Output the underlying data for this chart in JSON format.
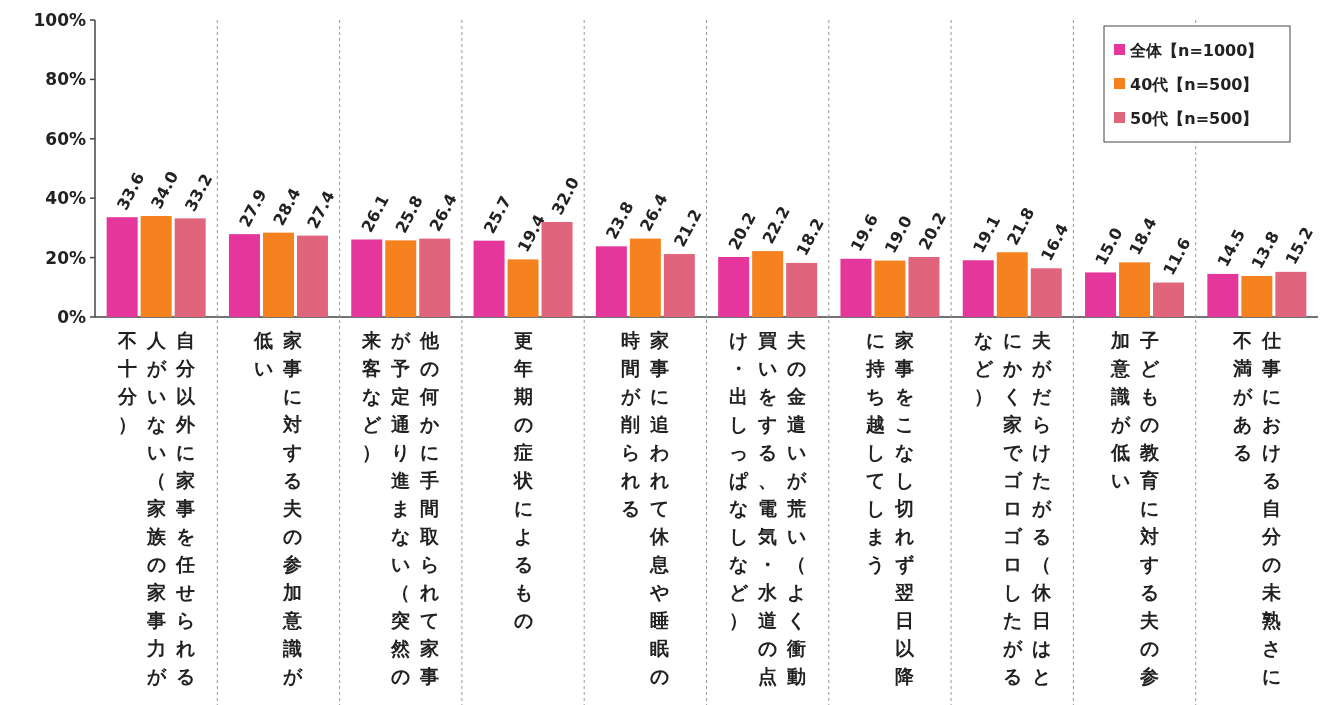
{
  "chart_data": {
    "type": "bar",
    "categories": [
      "自分以外に家事を任せられる人がいない（家族の家事力が不十分）",
      "家事に対する夫の参加意識が低い",
      "他の何かに手間取られて家事が予定通り進まない（突然の来客など）",
      "更年期の症状によるもの",
      "家事に追われて休息や睡眠の時間が削られる",
      "夫の金遣いが荒い（よく衝動買いをする、電気・水道の点け・出しっぱなしなど）",
      "家事をこなし切れず翌日以降に持ち越してしまう",
      "夫がだらけたがる（休日はとにかく家でゴロゴロしたがるなど）",
      "子どもの教育に対する夫の参加意識が低い",
      "仕事における自分の未熟さに不満がある"
    ],
    "series": [
      {
        "name": "全体【n=1000】",
        "color": "#e5379b",
        "values": [
          33.6,
          27.9,
          26.1,
          25.7,
          23.8,
          20.2,
          19.6,
          19.1,
          15.0,
          14.5
        ],
        "value_labels": [
          "33.6",
          "27.9",
          "26.1",
          "25.7",
          "23.8",
          "20.2",
          "19.6",
          "19.1",
          "15.0",
          "14.5"
        ]
      },
      {
        "name": "40代【n=500】",
        "color": "#f5821f",
        "values": [
          34.0,
          28.4,
          25.8,
          19.4,
          26.4,
          22.2,
          19.0,
          21.8,
          18.4,
          13.8
        ],
        "value_labels": [
          "34.0",
          "28.4",
          "25.8",
          "19.4",
          "26.4",
          "22.2",
          "19.0",
          "21.8",
          "18.4",
          "13.8"
        ]
      },
      {
        "name": "50代【n=500】",
        "color": "#e0647c",
        "values": [
          33.2,
          27.4,
          26.4,
          32.0,
          21.2,
          18.2,
          20.2,
          16.4,
          11.6,
          15.2
        ],
        "value_labels": [
          "33.2",
          "27.4",
          "26.4",
          "32.0",
          "21.2",
          "18.2",
          "20.2",
          "16.4",
          "11.6",
          "15.2"
        ]
      }
    ],
    "ylim": [
      0,
      100
    ],
    "yticks": [
      {
        "value": 0,
        "label": "0%"
      },
      {
        "value": 20,
        "label": "20%"
      },
      {
        "value": 40,
        "label": "40%"
      },
      {
        "value": 60,
        "label": "60%"
      },
      {
        "value": 80,
        "label": "80%"
      },
      {
        "value": 100,
        "label": "100%"
      }
    ],
    "legend": "top right"
  }
}
